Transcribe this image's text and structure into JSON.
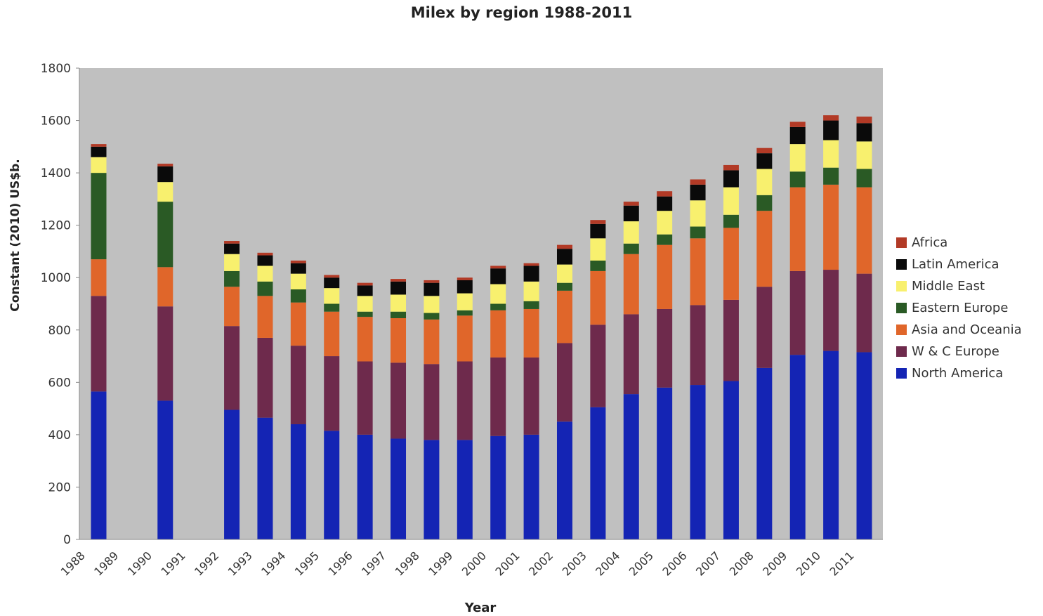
{
  "chart_data": {
    "type": "bar",
    "stacked": true,
    "title": "Milex by region 1988-2011",
    "xlabel": "Year",
    "ylabel": "Constant (2010) US$b.",
    "ylim": [
      0,
      1800
    ],
    "yticks": [
      0,
      200,
      400,
      600,
      800,
      1000,
      1200,
      1400,
      1600,
      1800
    ],
    "grid": false,
    "legend_position": "right",
    "background": "#c0c0c0",
    "categories": [
      "1988",
      "1989",
      "1990",
      "1991",
      "1992",
      "1993",
      "1994",
      "1995",
      "1996",
      "1997",
      "1998",
      "1999",
      "2000",
      "2001",
      "2002",
      "2003",
      "2004",
      "2005",
      "2006",
      "2007",
      "2008",
      "2009",
      "2010",
      "2011"
    ],
    "bar_slots": [
      0,
      2,
      4,
      5,
      6,
      7,
      8,
      9,
      10,
      11,
      12,
      13,
      14,
      15,
      16,
      17,
      18,
      19,
      20,
      21,
      22,
      23
    ],
    "series": [
      {
        "name": "North America",
        "color": "#1424b4",
        "values": [
          565,
          null,
          530,
          null,
          495,
          465,
          440,
          415,
          400,
          385,
          380,
          380,
          395,
          400,
          450,
          505,
          555,
          580,
          590,
          605,
          655,
          705,
          720,
          715
        ]
      },
      {
        "name": "W & C Europe",
        "color": "#6e2a4c",
        "values": [
          365,
          null,
          360,
          null,
          320,
          305,
          300,
          285,
          280,
          290,
          290,
          300,
          300,
          295,
          300,
          315,
          305,
          300,
          305,
          310,
          310,
          320,
          310,
          300
        ]
      },
      {
        "name": "Asia and Oceania",
        "color": "#e0662a",
        "values": [
          140,
          null,
          150,
          null,
          150,
          160,
          165,
          170,
          170,
          170,
          170,
          175,
          180,
          185,
          200,
          205,
          230,
          245,
          255,
          275,
          290,
          320,
          325,
          330
        ]
      },
      {
        "name": "Eastern Europe",
        "color": "#2a5a25",
        "values": [
          330,
          null,
          250,
          null,
          60,
          55,
          50,
          30,
          20,
          25,
          25,
          20,
          25,
          30,
          30,
          40,
          40,
          40,
          45,
          50,
          60,
          60,
          65,
          70
        ]
      },
      {
        "name": "Middle East",
        "color": "#f8f06e",
        "values": [
          60,
          null,
          75,
          null,
          65,
          60,
          60,
          60,
          60,
          65,
          65,
          65,
          75,
          75,
          70,
          85,
          85,
          90,
          100,
          105,
          100,
          105,
          105,
          105
        ]
      },
      {
        "name": "Latin America",
        "color": "#0a0a0a",
        "values": [
          40,
          null,
          60,
          null,
          40,
          40,
          40,
          40,
          40,
          50,
          50,
          50,
          60,
          60,
          60,
          55,
          60,
          55,
          60,
          65,
          60,
          65,
          75,
          70
        ]
      },
      {
        "name": "Africa",
        "color": "#b23a26",
        "values": [
          10,
          null,
          10,
          null,
          10,
          10,
          10,
          10,
          10,
          10,
          10,
          10,
          10,
          10,
          15,
          15,
          15,
          20,
          20,
          20,
          20,
          20,
          20,
          25
        ]
      }
    ]
  }
}
